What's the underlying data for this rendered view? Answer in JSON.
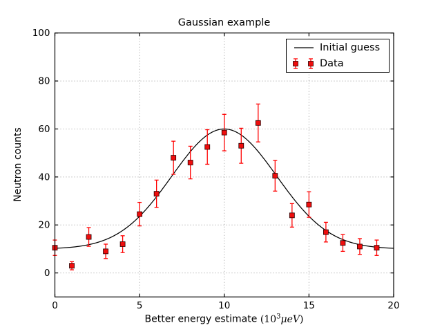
{
  "chart_data": {
    "type": "scatter",
    "title": "Gaussian example",
    "xlabel": "Better energy estimate (10³μeV)",
    "xlabel_parts": {
      "text": "Better energy estimate ",
      "open_paren": "(",
      "base": "10",
      "exponent": "3",
      "unit": "μeV",
      "close_paren": ")"
    },
    "ylabel": "Neutron counts",
    "xlim": [
      0,
      20
    ],
    "ylim": [
      -10,
      100
    ],
    "xticks": [
      0,
      5,
      10,
      15,
      20
    ],
    "yticks": [
      0,
      20,
      40,
      60,
      80,
      100
    ],
    "grid": true,
    "grid_style": "dotted",
    "background_color": "#ffffff",
    "legend": {
      "position": "upper right",
      "entries": [
        "Initial guess",
        "Data"
      ]
    },
    "series": [
      {
        "name": "Initial guess",
        "kind": "line",
        "color": "#000000",
        "model": "gaussian",
        "params": {
          "background": 10,
          "amplitude": 50,
          "center": 10,
          "sigma": 3.1
        }
      },
      {
        "name": "Data",
        "kind": "errorbar",
        "color": "#ff0000",
        "marker": "square",
        "marker_face": "#ef0d0d",
        "marker_edge": "#200000",
        "x": [
          0,
          1,
          2,
          3,
          4,
          5,
          6,
          7,
          8,
          9,
          10,
          11,
          12,
          13,
          14,
          15,
          16,
          17,
          18,
          19
        ],
        "y": [
          10.5,
          3,
          15,
          9,
          12,
          24.5,
          33,
          48,
          46,
          52.5,
          58.5,
          53,
          62.5,
          40.5,
          24,
          28.5,
          17,
          12.5,
          11,
          10.5
        ],
        "yerr": [
          3.2,
          1.7,
          3.9,
          3.0,
          3.5,
          4.9,
          5.7,
          6.9,
          6.8,
          7.2,
          7.6,
          7.3,
          7.9,
          6.4,
          4.9,
          5.3,
          4.1,
          3.5,
          3.3,
          3.2
        ]
      }
    ]
  }
}
